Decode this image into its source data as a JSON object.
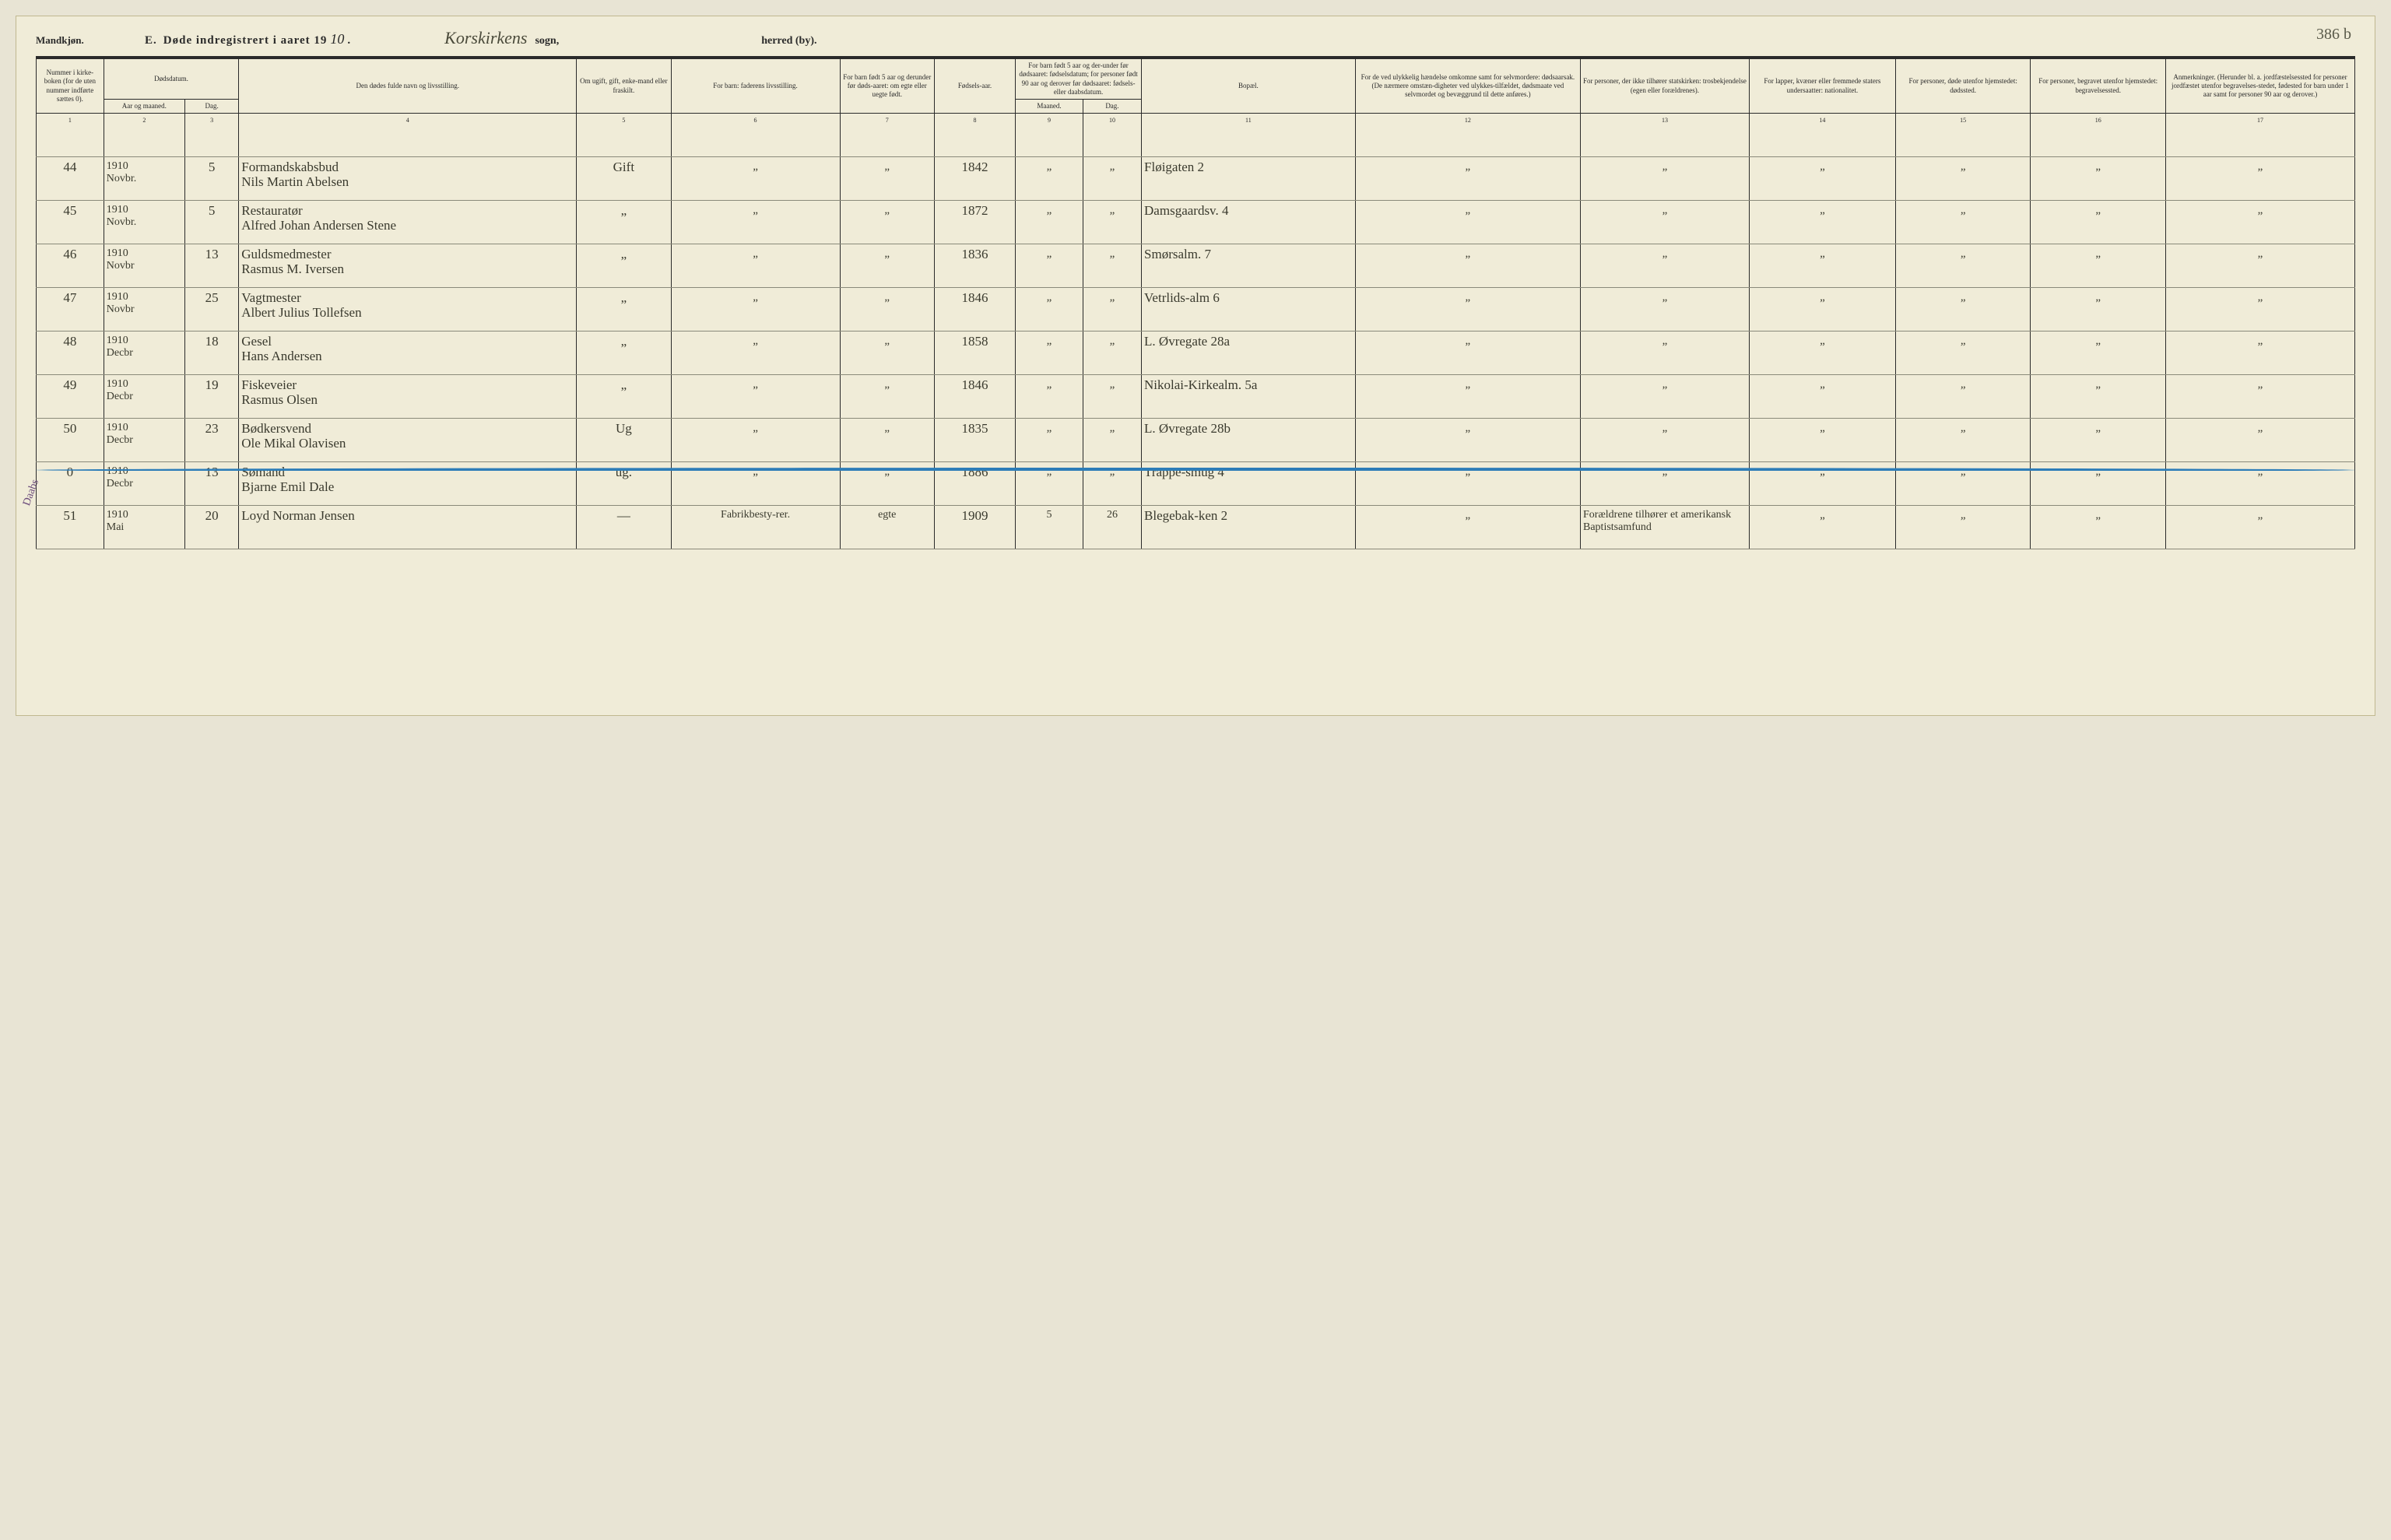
{
  "page_number_hand": "386 b",
  "header": {
    "gender_label": "Mandkjøn.",
    "section_letter": "E.",
    "title_prefix": "Døde indregistrert i aaret 19",
    "year_hand": "10",
    "title_suffix": ".",
    "sogn_hand": "Korskirkens",
    "sogn_label": "sogn,",
    "herred_label": "herred (by)."
  },
  "columns": {
    "c1": "Nummer i kirke-boken (for de uten nummer indførte sættes 0).",
    "c2a": "Dødsdatum.",
    "c2_aar": "Aar og maaned.",
    "c2_dag": "Dag.",
    "c4": "Den dødes fulde navn og livsstilling.",
    "c5": "Om ugift, gift, enke-mand eller fraskilt.",
    "c6": "For barn: faderens livsstilling.",
    "c7": "For barn født 5 aar og derunder før døds-aaret: om egte eller uegte født.",
    "c8": "Fødsels-aar.",
    "c9_10": "For barn født 5 aar og der-under før dødsaaret: fødselsdatum; for personer født 90 aar og derover før dødsaaret: fødsels- eller daabsdatum.",
    "c9": "Maaned.",
    "c10": "Dag.",
    "c11": "Bopæl.",
    "c12": "For de ved ulykkelig hændelse omkomne samt for selvmordere: dødsaarsak. (De nærmere omstæn-digheter ved ulykkes-tilfældet, dødsmaate ved selvmordet og bevæggrund til dette anføres.)",
    "c13": "For personer, der ikke tilhører statskirken: trosbekjendelse (egen eller forældrenes).",
    "c14": "For lapper, kvæner eller fremmede staters undersaatter: nationalitet.",
    "c15": "For personer, døde utenfor hjemstedet: dødssted.",
    "c16": "For personer, begravet utenfor hjemstedet: begravelsessted.",
    "c17": "Anmerkninger. (Herunder bl. a. jordfæstelsessted for personer jordfæstet utenfor begravelses-stedet, fødested for barn under 1 aar samt for personer 90 aar og derover.)"
  },
  "col_nums": [
    "1",
    "2",
    "3",
    "4",
    "5",
    "6",
    "7",
    "8",
    "9",
    "10",
    "11",
    "12",
    "13",
    "14",
    "15",
    "16",
    "17"
  ],
  "col_widths_pct": [
    3.0,
    3.6,
    2.4,
    15.0,
    4.2,
    7.5,
    4.2,
    3.6,
    3.0,
    2.6,
    9.5,
    10.0,
    7.5,
    6.5,
    6.0,
    6.0,
    8.4
  ],
  "ditto_mark": "„",
  "rows": [
    {
      "num": "44",
      "aar": "1910",
      "maaned": "Novbr.",
      "dag": "5",
      "occupation": "Formandskabsbud",
      "name": "Nils Martin Abelsen",
      "civil": "Gift",
      "c6": "„",
      "c7": "„",
      "birth_year": "1842",
      "c9": "„",
      "c10": "„",
      "residence": "Fløigaten 2",
      "c12": "„",
      "c13": "„",
      "c14": "„",
      "c15": "„",
      "c16": "„",
      "c17": "„"
    },
    {
      "num": "45",
      "aar": "1910",
      "maaned": "Novbr.",
      "dag": "5",
      "occupation": "Restauratør",
      "name": "Alfred Johan Andersen Stene",
      "civil": "„",
      "c6": "„",
      "c7": "„",
      "birth_year": "1872",
      "c9": "„",
      "c10": "„",
      "residence": "Damsgaardsv. 4",
      "c12": "„",
      "c13": "„",
      "c14": "„",
      "c15": "„",
      "c16": "„",
      "c17": "„"
    },
    {
      "num": "46",
      "aar": "1910",
      "maaned": "Novbr",
      "dag": "13",
      "occupation": "Guldsmedmester",
      "name": "Rasmus M. Iversen",
      "civil": "„",
      "c6": "„",
      "c7": "„",
      "birth_year": "1836",
      "c9": "„",
      "c10": "„",
      "residence": "Smørsalm. 7",
      "c12": "„",
      "c13": "„",
      "c14": "„",
      "c15": "„",
      "c16": "„",
      "c17": "„"
    },
    {
      "num": "47",
      "aar": "1910",
      "maaned": "Novbr",
      "dag": "25",
      "occupation": "Vagtmester",
      "name": "Albert Julius Tollefsen",
      "civil": "„",
      "c6": "„",
      "c7": "„",
      "birth_year": "1846",
      "c9": "„",
      "c10": "„",
      "residence": "Vetrlids-alm 6",
      "c12": "„",
      "c13": "„",
      "c14": "„",
      "c15": "„",
      "c16": "„",
      "c17": "„"
    },
    {
      "num": "48",
      "aar": "1910",
      "maaned": "Decbr",
      "dag": "18",
      "occupation": "Gesel",
      "name": "Hans Andersen",
      "civil": "„",
      "c6": "„",
      "c7": "„",
      "birth_year": "1858",
      "c9": "„",
      "c10": "„",
      "residence": "L. Øvregate 28a",
      "c12": "„",
      "c13": "„",
      "c14": "„",
      "c15": "„",
      "c16": "„",
      "c17": "„"
    },
    {
      "num": "49",
      "aar": "1910",
      "maaned": "Decbr",
      "dag": "19",
      "occupation": "Fiskeveier",
      "name": "Rasmus Olsen",
      "civil": "„",
      "c6": "„",
      "c7": "„",
      "birth_year": "1846",
      "c9": "„",
      "c10": "„",
      "residence": "Nikolai-Kirkealm. 5a",
      "c12": "„",
      "c13": "„",
      "c14": "„",
      "c15": "„",
      "c16": "„",
      "c17": "„"
    },
    {
      "num": "50",
      "aar": "1910",
      "maaned": "Decbr",
      "dag": "23",
      "occupation": "Bødkersvend",
      "name": "Ole Mikal Olavisen",
      "civil": "Ug",
      "c6": "„",
      "c7": "„",
      "birth_year": "1835",
      "c9": "„",
      "c10": "„",
      "residence": "L. Øvregate 28b",
      "c12": "„",
      "c13": "„",
      "c14": "„",
      "c15": "„",
      "c16": "„",
      "c17": "„"
    },
    {
      "num": "0",
      "aar": "1910",
      "maaned": "Decbr",
      "dag": "13",
      "occupation": "Sømand",
      "name": "Bjarne Emil Dale",
      "civil": "ug.",
      "c6": "„",
      "c7": "„",
      "birth_year": "1886",
      "c9": "„",
      "c10": "„",
      "residence": "Trappe-smug 4",
      "c12": "„",
      "c13": "„",
      "c14": "„",
      "c15": "„",
      "c16": "„",
      "c17": "„",
      "blue_line": true,
      "side_note": "Daabs"
    },
    {
      "num": "51",
      "aar": "1910",
      "maaned": "Mai",
      "dag": "20",
      "occupation": "",
      "name": "Loyd Norman Jensen",
      "civil": "—",
      "c6": "Fabrikbesty-rer.",
      "c7": "egte",
      "birth_year": "1909",
      "c9": "5",
      "c10": "26",
      "residence": "Blegebak-ken 2",
      "c12": "„",
      "c13": "Forældrene tilhører et amerikansk Baptistsamfund",
      "c14": "„",
      "c15": "„",
      "c16": "„",
      "c17": "„"
    }
  ],
  "colors": {
    "page_bg": "#f0ecd8",
    "body_bg": "#e8e4d4",
    "rule": "#2a2a2a",
    "hand_ink": "#3a3a2e",
    "blue_pencil": "#2d7db8",
    "side_note_ink": "#6a4a7a"
  }
}
